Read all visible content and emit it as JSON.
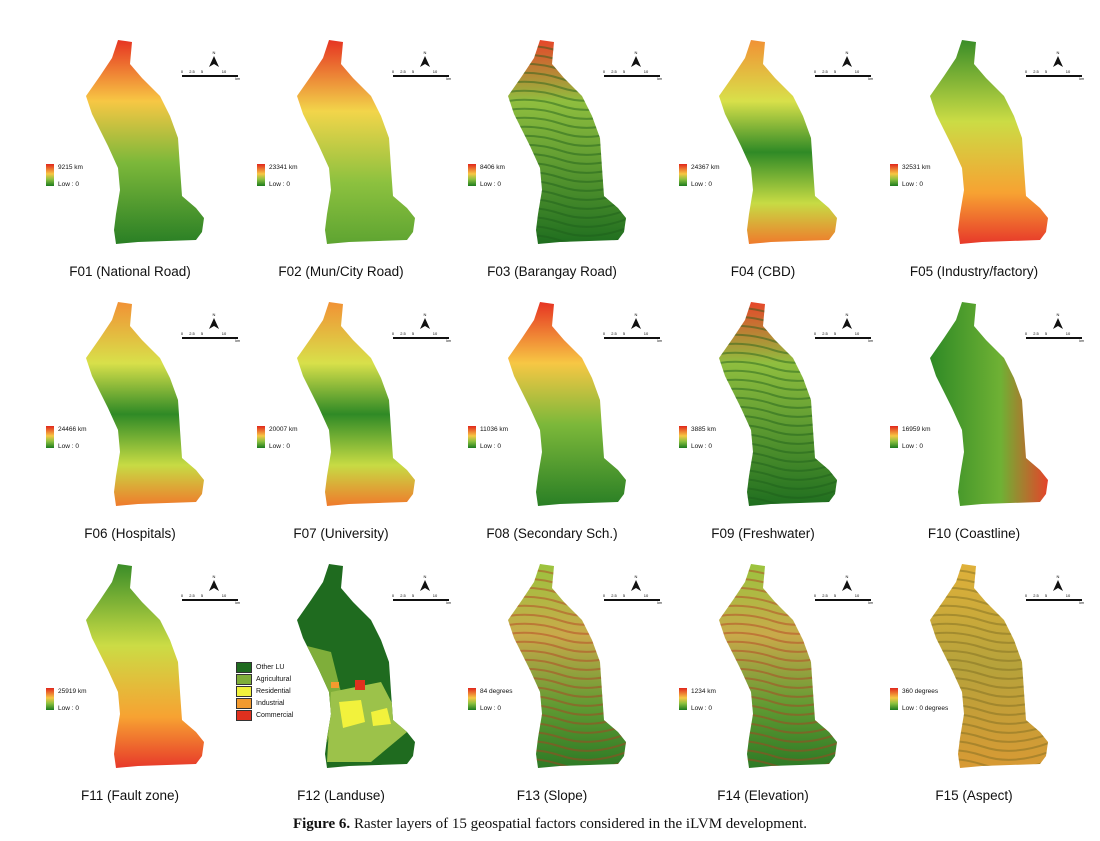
{
  "figure": {
    "label": "Figure 6.",
    "caption": "Raster layers of 15 geospatial factors considered in the iLVM development."
  },
  "scale_bar": {
    "ticks": [
      "0",
      "2.5",
      "5",
      "10"
    ],
    "unit": "km",
    "north": "N"
  },
  "panels": [
    {
      "id": "F01",
      "title": "F01 (National Road)",
      "max": "9215 km",
      "min": "Low : 0",
      "style": "road"
    },
    {
      "id": "F02",
      "title": "F02 (Mun/City Road)",
      "max": "23341 km",
      "min": "Low : 0",
      "style": "north"
    },
    {
      "id": "F03",
      "title": "F03 (Barangay Road)",
      "max": "8406 km",
      "min": "Low : 0",
      "style": "rough"
    },
    {
      "id": "F04",
      "title": "F04 (CBD)",
      "max": "24367 km",
      "min": "Low : 0",
      "style": "center"
    },
    {
      "id": "F05",
      "title": "F05 (Industry/factory)",
      "max": "32531 km",
      "min": "Low : 0",
      "style": "south"
    },
    {
      "id": "F06",
      "title": "F06 (Hospitals)",
      "max": "24466 km",
      "min": "Low : 0",
      "style": "center"
    },
    {
      "id": "F07",
      "title": "F07 (University)",
      "max": "20007 km",
      "min": "Low : 0",
      "style": "center"
    },
    {
      "id": "F08",
      "title": "F08 (Secondary Sch.)",
      "max": "11036 km",
      "min": "Low : 0",
      "style": "road"
    },
    {
      "id": "F09",
      "title": "F09 (Freshwater)",
      "max": "3885 km",
      "min": "Low : 0",
      "style": "rough"
    },
    {
      "id": "F10",
      "title": "F10 (Coastline)",
      "max": "16959 km",
      "min": "Low : 0",
      "style": "west"
    },
    {
      "id": "F11",
      "title": "F11 (Fault zone)",
      "max": "25919 km",
      "min": "Low : 0",
      "style": "south"
    },
    {
      "id": "F12",
      "title": "F12 (Landuse)",
      "max": "",
      "min": "",
      "style": "landuse"
    },
    {
      "id": "F13",
      "title": "F13 (Slope)",
      "max": "84 degrees",
      "min": "Low : 0",
      "style": "terrain"
    },
    {
      "id": "F14",
      "title": "F14 (Elevation)",
      "max": "1234 km",
      "min": "Low : 0",
      "style": "terrain"
    },
    {
      "id": "F15",
      "title": "F15 (Aspect)",
      "max": "360 degrees",
      "min": "Low : 0 degrees",
      "style": "aspect"
    }
  ],
  "landuse_legend": [
    {
      "label": "Other LU",
      "color": "#1f6b1f"
    },
    {
      "label": "Agricultural",
      "color": "#7fae3a"
    },
    {
      "label": "Residential",
      "color": "#f2f23c"
    },
    {
      "label": "Industrial",
      "color": "#f39a2e"
    },
    {
      "label": "Commercial",
      "color": "#e0301e"
    }
  ]
}
